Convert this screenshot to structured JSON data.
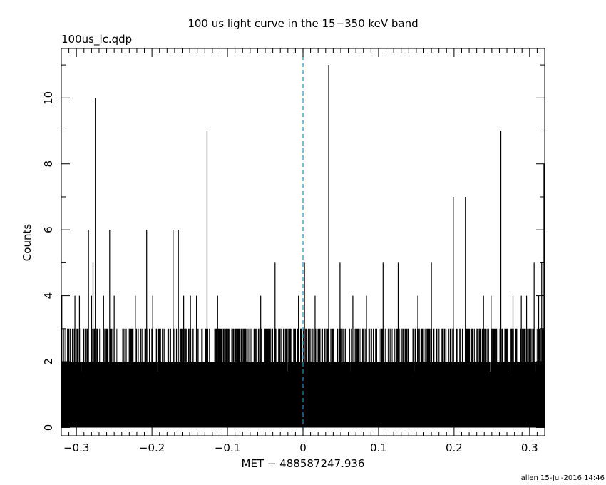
{
  "chart_data": {
    "type": "bar",
    "title": "100 us light curve in the 15−350 keV band",
    "subtitle": "100us_lc.qdp",
    "xlabel": "MET − 488587247.936",
    "ylabel": "Counts",
    "xlim": [
      -0.32,
      0.32
    ],
    "ylim": [
      -0.25,
      11.5
    ],
    "x_ticks": [
      -0.3,
      -0.2,
      -0.1,
      0,
      0.1,
      0.2,
      0.3
    ],
    "x_tick_labels": [
      "−0.3",
      "−0.2",
      "−0.1",
      "0",
      "0.1",
      "0.2",
      "0.3"
    ],
    "y_ticks": [
      0,
      2,
      4,
      6,
      8,
      10
    ],
    "y_tick_labels": [
      "0",
      "2",
      "4",
      "6",
      "8",
      "10"
    ],
    "bin_width_s": 0.0001,
    "reference_line": {
      "x": 0,
      "color": "#1e90c8",
      "style": "dashed"
    },
    "baseline": {
      "description": "dense binned counts between 0 and 3",
      "common_max": 2,
      "range": [
        0,
        3
      ]
    },
    "peaks": [
      {
        "x": -0.3193,
        "y": 4
      },
      {
        "x": -0.302,
        "y": 4
      },
      {
        "x": -0.296,
        "y": 4
      },
      {
        "x": -0.284,
        "y": 6
      },
      {
        "x": -0.28,
        "y": 4
      },
      {
        "x": -0.278,
        "y": 5
      },
      {
        "x": -0.275,
        "y": 10
      },
      {
        "x": -0.264,
        "y": 4
      },
      {
        "x": -0.256,
        "y": 6
      },
      {
        "x": -0.25,
        "y": 4
      },
      {
        "x": -0.222,
        "y": 4
      },
      {
        "x": -0.207,
        "y": 6
      },
      {
        "x": -0.199,
        "y": 4
      },
      {
        "x": -0.172,
        "y": 6
      },
      {
        "x": -0.165,
        "y": 6
      },
      {
        "x": -0.158,
        "y": 4
      },
      {
        "x": -0.149,
        "y": 4
      },
      {
        "x": -0.141,
        "y": 4
      },
      {
        "x": -0.127,
        "y": 9
      },
      {
        "x": -0.113,
        "y": 4
      },
      {
        "x": -0.056,
        "y": 4
      },
      {
        "x": -0.037,
        "y": 5
      },
      {
        "x": -0.006,
        "y": 4
      },
      {
        "x": 0.002,
        "y": 5
      },
      {
        "x": 0.016,
        "y": 4
      },
      {
        "x": 0.034,
        "y": 11
      },
      {
        "x": 0.049,
        "y": 5
      },
      {
        "x": 0.066,
        "y": 4
      },
      {
        "x": 0.084,
        "y": 4
      },
      {
        "x": 0.106,
        "y": 5
      },
      {
        "x": 0.126,
        "y": 5
      },
      {
        "x": 0.152,
        "y": 4
      },
      {
        "x": 0.17,
        "y": 5
      },
      {
        "x": 0.199,
        "y": 7
      },
      {
        "x": 0.215,
        "y": 7
      },
      {
        "x": 0.239,
        "y": 4
      },
      {
        "x": 0.249,
        "y": 4
      },
      {
        "x": 0.262,
        "y": 9
      },
      {
        "x": 0.278,
        "y": 4
      },
      {
        "x": 0.289,
        "y": 4
      },
      {
        "x": 0.296,
        "y": 4
      },
      {
        "x": 0.306,
        "y": 5
      },
      {
        "x": 0.312,
        "y": 4
      },
      {
        "x": 0.316,
        "y": 5
      },
      {
        "x": 0.319,
        "y": 8
      }
    ],
    "footer": "allen 15-Jul-2016 14:46"
  }
}
